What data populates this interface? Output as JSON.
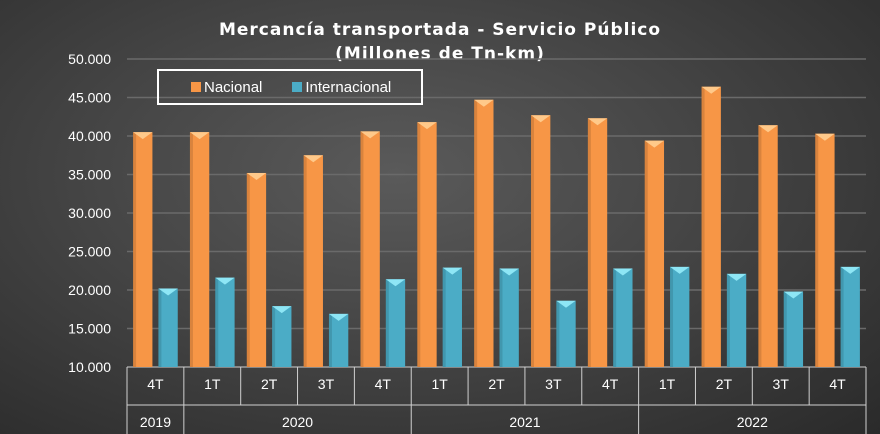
{
  "chart_data": {
    "type": "bar",
    "title": "Mercancía transportada  - Servicio Público",
    "subtitle": "(Millones de Tn-km)",
    "categories": [
      "4T",
      "1T",
      "2T",
      "3T",
      "4T",
      "1T",
      "2T",
      "3T",
      "4T",
      "1T",
      "2T",
      "3T",
      "4T"
    ],
    "groups": [
      {
        "label": "2019",
        "span": 1
      },
      {
        "label": "2020",
        "span": 4
      },
      {
        "label": "2021",
        "span": 4
      },
      {
        "label": "2022",
        "span": 4
      }
    ],
    "series": [
      {
        "name": "Nacional",
        "color": "#F79646",
        "values": [
          40500,
          40500,
          35200,
          37500,
          40600,
          41800,
          44700,
          42700,
          42300,
          39400,
          46400,
          41400,
          40300
        ]
      },
      {
        "name": "Internacional",
        "color": "#4BACC6",
        "values": [
          20200,
          21600,
          17900,
          16900,
          21400,
          22900,
          22800,
          18600,
          22800,
          23000,
          22100,
          19800,
          23000
        ]
      }
    ],
    "ylim": [
      10000,
      50000
    ],
    "yticks": [
      "10.000",
      "15.000",
      "20.000",
      "25.000",
      "30.000",
      "35.000",
      "40.000",
      "45.000",
      "50.000"
    ],
    "grid": true,
    "legend_position": "top-left",
    "xlabel": "",
    "ylabel": ""
  }
}
